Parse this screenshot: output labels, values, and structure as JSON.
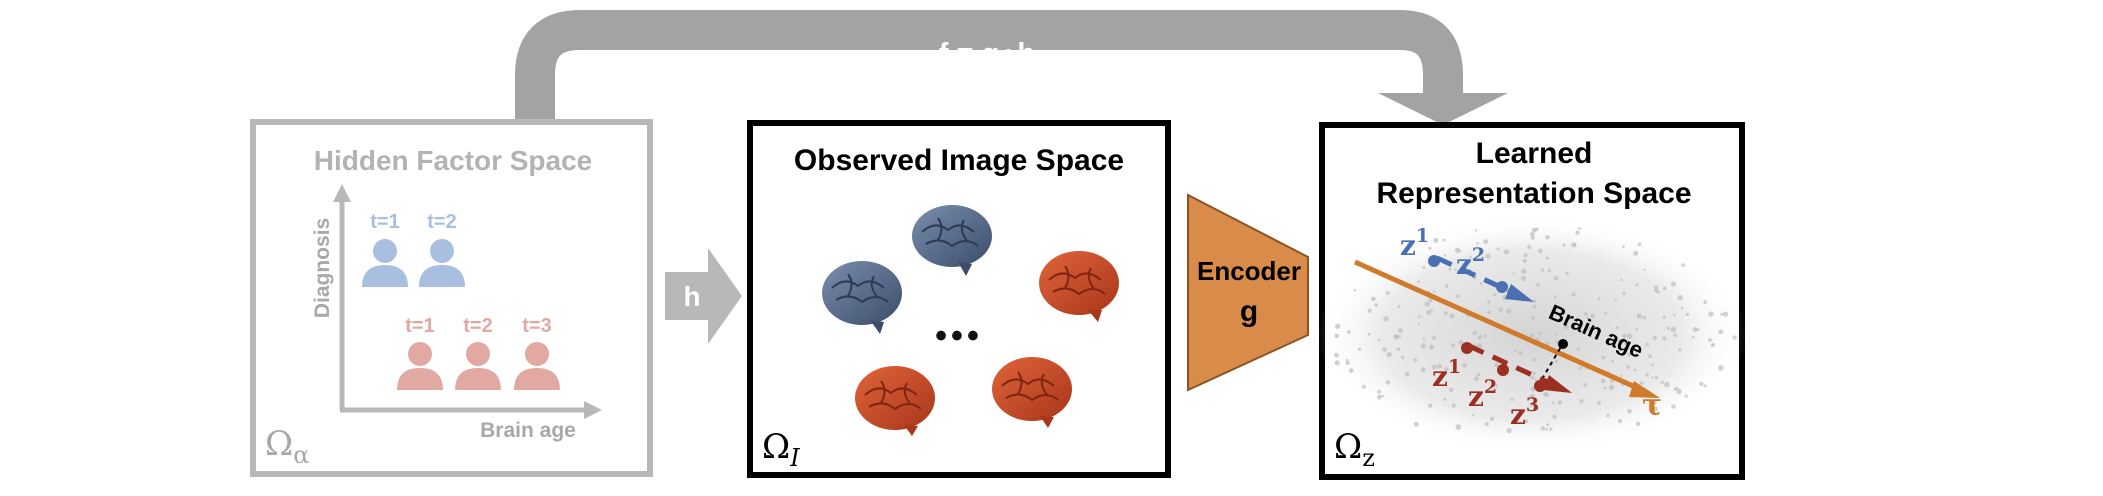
{
  "top_arrow": {
    "label": "f = g∘h"
  },
  "hidden_panel": {
    "title": "Hidden Factor Space",
    "y_axis_label": "Diagnosis",
    "x_axis_label": "Brain age",
    "top_row_labels": [
      "t=1",
      "t=2"
    ],
    "bottom_row_labels": [
      "t=1",
      "t=2",
      "t=3"
    ],
    "corner_symbol": "Ω",
    "corner_subscript": "α",
    "colors": {
      "frame": "#b8b8b8",
      "blue_people": "#a9bfe0",
      "red_people": "#e2a8a2",
      "axis": "#b8b8b8"
    }
  },
  "h_arrow": {
    "label": "h"
  },
  "image_panel": {
    "title": "Observed Image Space",
    "ellipsis": "•••",
    "corner_symbol": "Ω",
    "corner_subscript": "I",
    "colors": {
      "blue_brain": "#4b5f7e",
      "orange_brain": "#c8451f"
    }
  },
  "encoder": {
    "label_1": "Encoder",
    "label_2": "g",
    "color": "#d98b4a"
  },
  "latent_panel": {
    "title_line_1": "Learned",
    "title_line_2": "Representation Space",
    "axis_label": "Brain age",
    "axis_symbol": "τ",
    "blue_points": [
      {
        "base": "z",
        "sup": "1"
      },
      {
        "base": "z",
        "sup": "2"
      }
    ],
    "red_points": [
      {
        "base": "z",
        "sup": "1"
      },
      {
        "base": "z",
        "sup": "2"
      },
      {
        "base": "z",
        "sup": "3"
      }
    ],
    "corner_symbol": "Ω",
    "corner_subscript": "z",
    "colors": {
      "axis": "#d07a2a",
      "blue": "#4a6fb2",
      "red": "#9c2f22",
      "cloud": "#c9c9c9"
    }
  }
}
